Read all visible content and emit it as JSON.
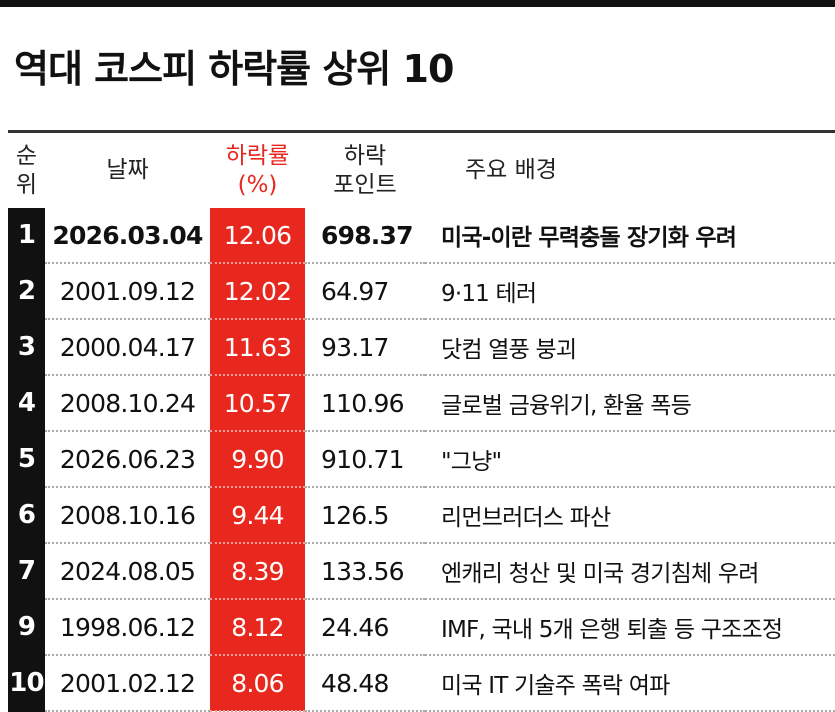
{
  "header": {
    "title": "역대 코스피 하락률 상위 10"
  },
  "table": {
    "columns": [
      [
        "순",
        "위"
      ],
      [
        "날짜"
      ],
      [
        "하락률",
        "(%)"
      ],
      [
        "하락",
        "포인트"
      ],
      [
        "주요 배경"
      ]
    ],
    "rows": [
      [
        "1",
        "2026.03.04",
        "12.06",
        "698.37",
        "미국-이란 무력충돌 장기화 우려"
      ],
      [
        "2",
        "2001.09.12",
        "12.02",
        "64.97",
        "9·11 테러"
      ],
      [
        "3",
        "2000.04.17",
        "11.63",
        "93.17",
        "닷컴 열풍 붕괴"
      ],
      [
        "4",
        "2008.10.24",
        "10.57",
        "110.96",
        "글로벌 금융위기, 환율 폭등"
      ],
      [
        "5",
        "2026.06.23",
        "9.90",
        "910.71",
        "\"그냥\""
      ],
      [
        "6",
        "2008.10.16",
        "9.44",
        "126.5",
        "리먼브러더스 파산"
      ],
      [
        "7",
        "2024.08.05",
        "8.39",
        "133.56",
        "엔캐리 청산 및 미국 경기침체 우려"
      ],
      [
        "9",
        "1998.06.12",
        "8.12",
        "24.46",
        "IMF, 국내 5개 은행 퇴출 등 구조조정"
      ],
      [
        "10",
        "2001.02.12",
        "8.06",
        "48.48",
        "미국 IT 기술주 폭락 여파"
      ]
    ]
  }
}
